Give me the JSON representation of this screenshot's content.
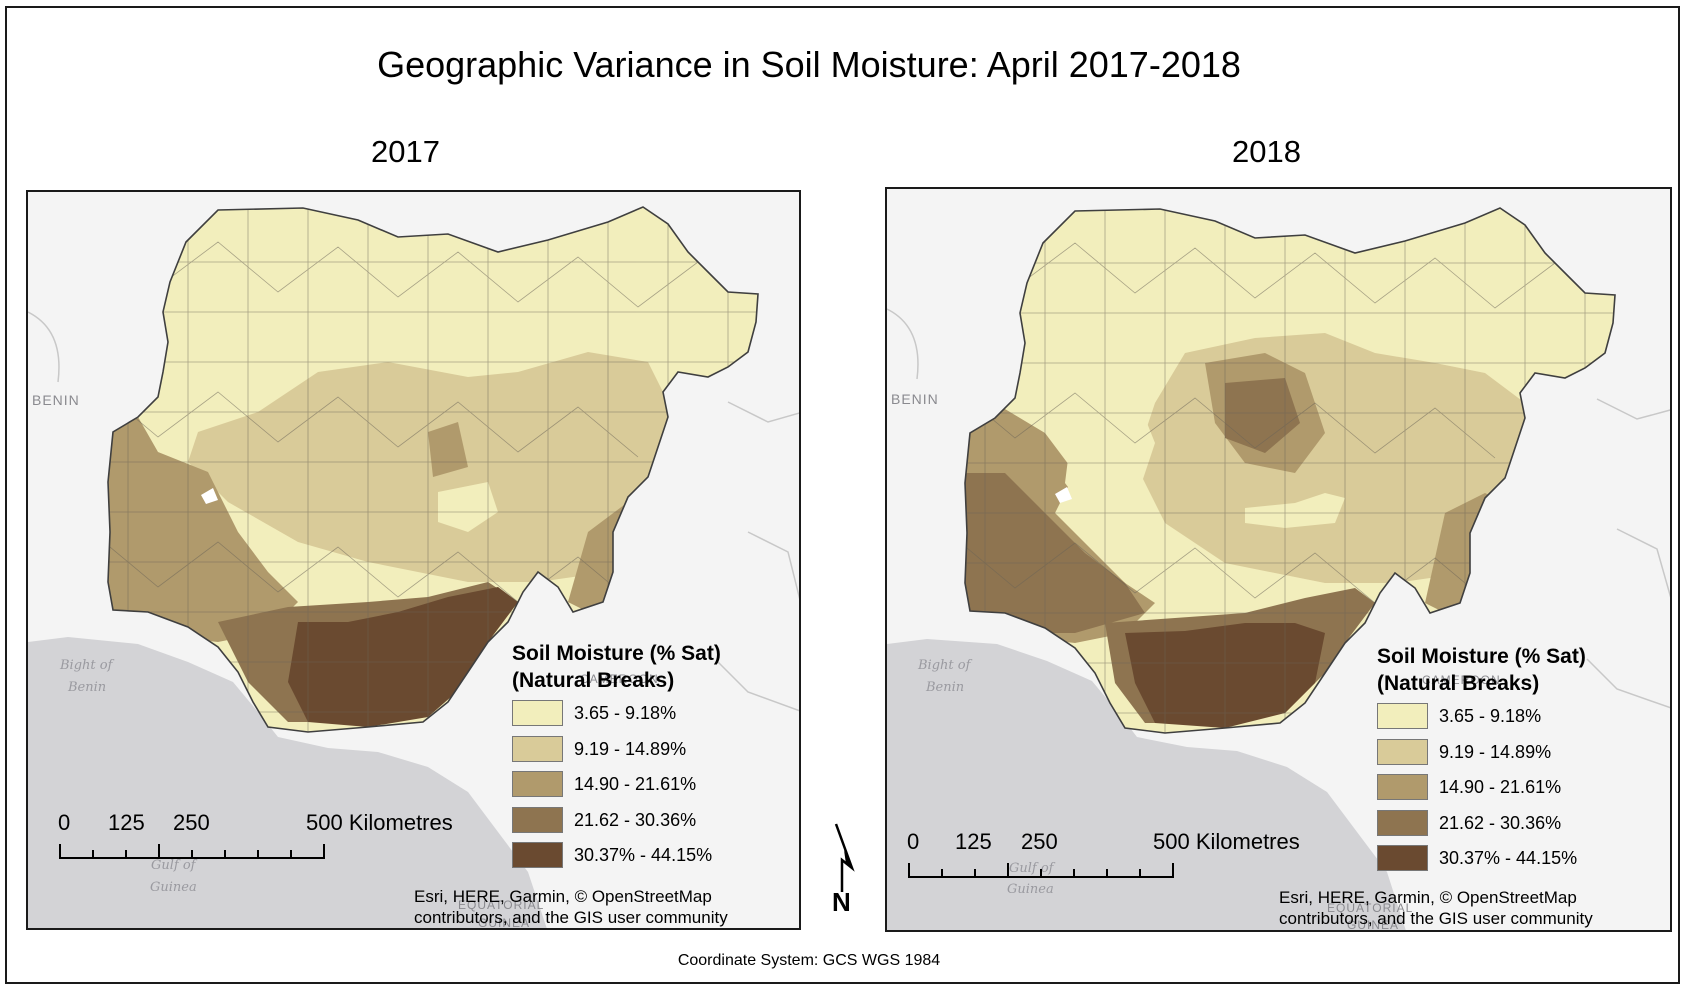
{
  "title": "Geographic Variance in Soil Moisture: April 2017-2018",
  "coordinate_system": "Coordinate System: GCS WGS 1984",
  "legend": {
    "title_line1": "Soil Moisture (% Sat)",
    "title_line2": "(Natural Breaks)",
    "classes": [
      {
        "label": "3.65 - 9.18%",
        "color": "#f2eebc"
      },
      {
        "label": "9.19 - 14.89%",
        "color": "#d9cb99"
      },
      {
        "label": "14.90 - 21.61%",
        "color": "#b09a6c"
      },
      {
        "label": "21.62 - 30.36%",
        "color": "#8e7450"
      },
      {
        "label": "30.37% - 44.15%",
        "color": "#6a4a30"
      }
    ]
  },
  "scale_bar": {
    "ticks": [
      "0",
      "125",
      "250",
      "500 Kilometres"
    ]
  },
  "credits": {
    "line1": "Esri, HERE, Garmin, © OpenStreetMap",
    "line2": "contributors, and the GIS user community"
  },
  "map_labels": {
    "benin": "BENIN",
    "bight_line1": "Bight of",
    "bight_line2": "Benin",
    "cameroon": "CAMEROON",
    "gulf_line1": "Gulf of",
    "gulf_line2": "Guinea",
    "equatorial": "EQUATORIAL",
    "guinea_country": "GUINEA"
  },
  "panels": [
    {
      "year": "2017"
    },
    {
      "year": "2018"
    }
  ],
  "north_arrow": "N",
  "colors": {
    "sea": "#d3d3d6",
    "land": "#f4f4f4",
    "border": "#4b4b4b"
  }
}
